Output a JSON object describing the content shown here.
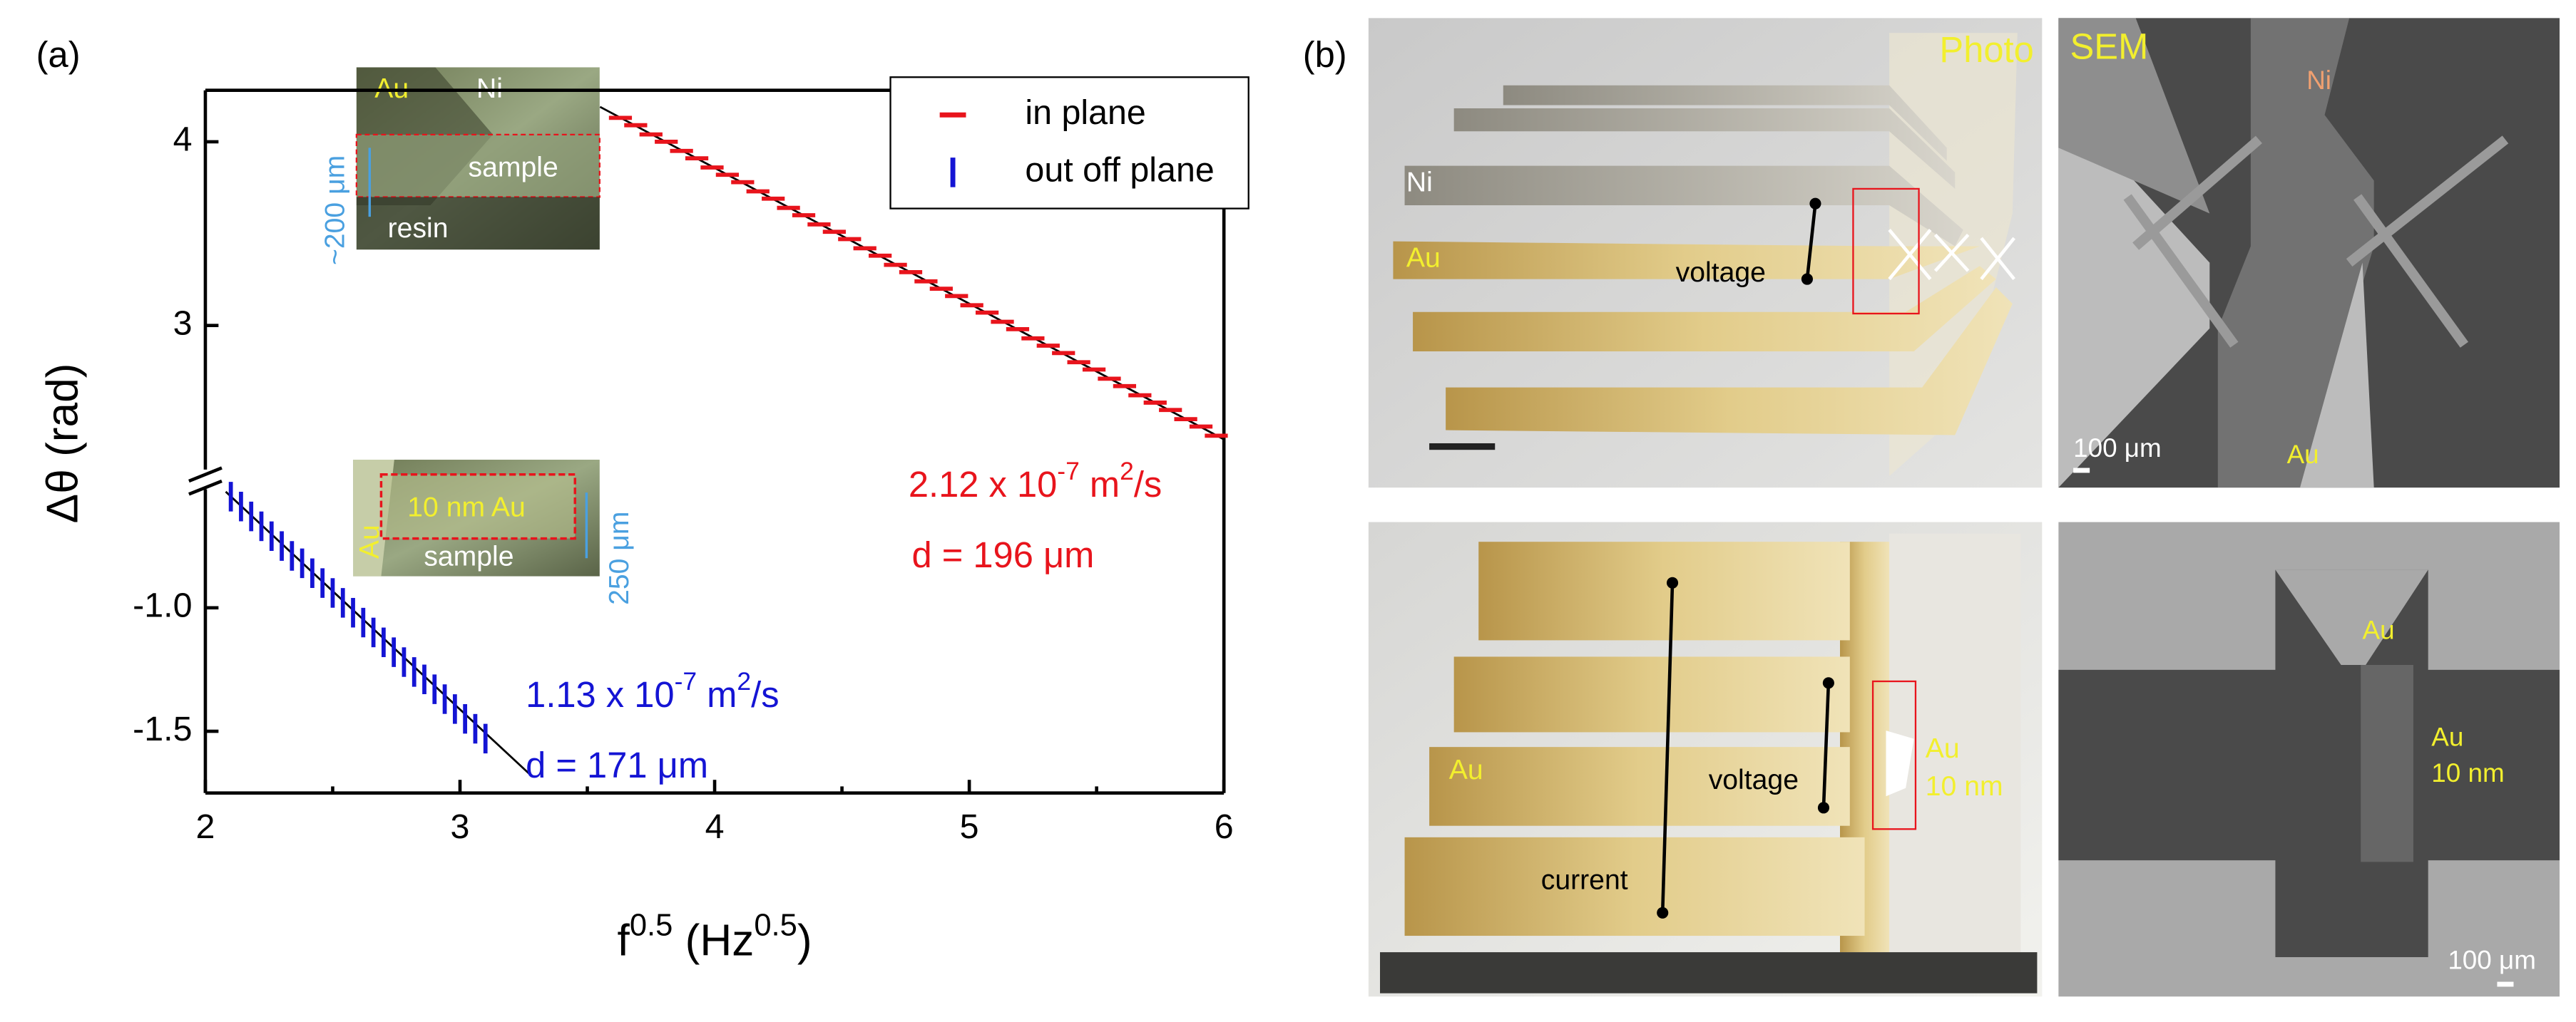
{
  "chart_data": {
    "type": "scatter",
    "panel_label": "(a)",
    "x_label": {
      "parts": [
        {
          "t": "f"
        },
        {
          "t": "0.5",
          "sup": true
        },
        {
          "t": " (Hz"
        },
        {
          "t": "0.5",
          "sup": true
        },
        {
          "t": ")"
        }
      ]
    },
    "y_label": "Δθ (rad)",
    "xlim": [
      2,
      6
    ],
    "xticks": [
      2,
      3,
      4,
      5,
      6
    ],
    "y_segments": [
      {
        "ylim": [
          2.18,
          4.28
        ],
        "yticks": [
          3,
          4
        ]
      },
      {
        "ylim": [
          -1.75,
          -0.52
        ],
        "yticks": [
          {
            "value": -1,
            "label": "-1.0"
          },
          -1.5
        ]
      }
    ],
    "legend": "upper right",
    "series": [
      {
        "name": "in plane",
        "color": "#e8141c",
        "marker": "hline",
        "segment": 0,
        "x": [
          3.63,
          3.69,
          3.75,
          3.81,
          3.87,
          3.93,
          3.99,
          4.05,
          4.11,
          4.17,
          4.23,
          4.29,
          4.35,
          4.41,
          4.47,
          4.53,
          4.59,
          4.65,
          4.71,
          4.77,
          4.83,
          4.89,
          4.95,
          5.01,
          5.07,
          5.13,
          5.19,
          5.25,
          5.31,
          5.37,
          5.43,
          5.49,
          5.55,
          5.61,
          5.67,
          5.73,
          5.79,
          5.85,
          5.91,
          5.97
        ],
        "values": [
          4.13,
          4.09,
          4.04,
          4.0,
          3.95,
          3.91,
          3.86,
          3.82,
          3.78,
          3.73,
          3.69,
          3.64,
          3.6,
          3.55,
          3.51,
          3.47,
          3.42,
          3.38,
          3.33,
          3.29,
          3.24,
          3.2,
          3.16,
          3.11,
          3.07,
          3.02,
          2.98,
          2.93,
          2.89,
          2.85,
          2.8,
          2.76,
          2.71,
          2.67,
          2.62,
          2.58,
          2.54,
          2.49,
          2.45,
          2.4
        ]
      },
      {
        "name": "out off plane",
        "color": "#1414d4",
        "marker": "vline",
        "segment": 1,
        "x": [
          2.1,
          2.14,
          2.18,
          2.22,
          2.26,
          2.3,
          2.34,
          2.38,
          2.42,
          2.46,
          2.5,
          2.54,
          2.58,
          2.62,
          2.66,
          2.7,
          2.74,
          2.78,
          2.82,
          2.86,
          2.9,
          2.94,
          2.98,
          3.02,
          3.06,
          3.1
        ],
        "values": [
          -0.55,
          -0.59,
          -0.63,
          -0.67,
          -0.71,
          -0.75,
          -0.79,
          -0.82,
          -0.86,
          -0.9,
          -0.94,
          -0.98,
          -1.02,
          -1.06,
          -1.1,
          -1.14,
          -1.18,
          -1.22,
          -1.26,
          -1.29,
          -1.33,
          -1.37,
          -1.41,
          -1.45,
          -1.49,
          -1.53
        ]
      }
    ],
    "fit_lines": [
      {
        "color": "#000000",
        "segment": 0,
        "x": [
          3.55,
          6.0
        ],
        "values": [
          4.19,
          2.38
        ]
      },
      {
        "color": "#000000",
        "segment": 1,
        "x": [
          2.08,
          3.28
        ],
        "values": [
          -0.53,
          -1.68
        ]
      }
    ],
    "annotations": [
      {
        "color": "#e8141c",
        "parts": [
          {
            "t": "2.12 x 10"
          },
          {
            "t": "-7",
            "sup": true
          },
          {
            "t": " m"
          },
          {
            "t": "2",
            "sup": true
          },
          {
            "t": "/s"
          }
        ]
      },
      {
        "color": "#e8141c",
        "parts": [
          {
            "t": "d = 196 μm"
          }
        ]
      },
      {
        "color": "#1414d4",
        "parts": [
          {
            "t": "1.13 x 10"
          },
          {
            "t": "-7",
            "sup": true
          },
          {
            "t": " m"
          },
          {
            "t": "2",
            "sup": true
          },
          {
            "t": "/s"
          }
        ]
      },
      {
        "color": "#1414d4",
        "parts": [
          {
            "t": "d = 171 μm"
          }
        ]
      }
    ],
    "insets": [
      {
        "labels": [
          "Au",
          "Ni",
          "sample",
          "resin",
          "~200 μm"
        ]
      },
      {
        "labels": [
          "10 nm Au",
          "Au",
          "sample",
          "250 μm"
        ]
      }
    ]
  },
  "panel_b": {
    "label": "(b)",
    "photo_top": {
      "title": "Photo",
      "ni": "Ni",
      "au": "Au",
      "voltage": "voltage"
    },
    "sem_top": {
      "title": "SEM",
      "ni": "Ni",
      "au": "Au",
      "scale": "100 μm"
    },
    "photo_bottom": {
      "au": "Au",
      "voltage": "voltage",
      "current": "current",
      "au_film": "Au",
      "thickness": "10 nm"
    },
    "sem_bottom": {
      "au_top": "Au",
      "au_film": "Au",
      "thickness": "10 nm",
      "scale": "100 μm"
    }
  }
}
